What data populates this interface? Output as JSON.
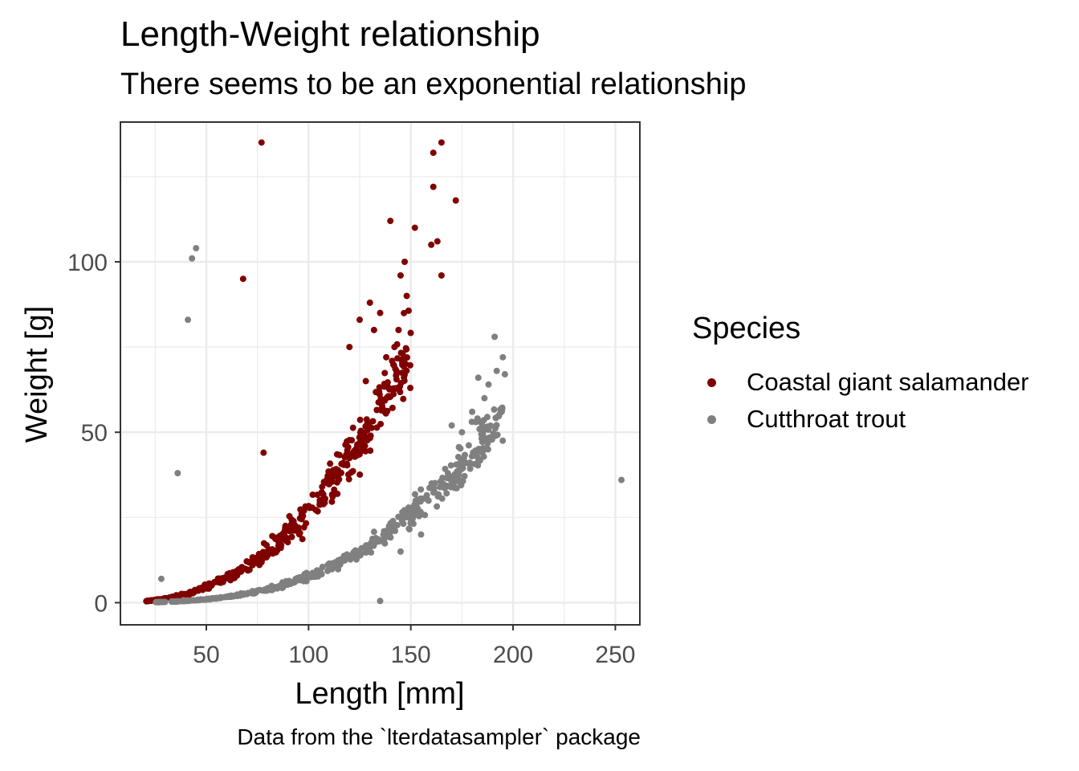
{
  "chart_data": {
    "type": "scatter",
    "title": "Length-Weight relationship",
    "subtitle": "There seems to be an exponential relationship",
    "caption": "Data from the `lterdatasampler` package",
    "xlabel": "Length [mm]",
    "ylabel": "Weight [g]",
    "xlim": [
      8,
      262
    ],
    "ylim": [
      -6.5,
      141
    ],
    "x_ticks": [
      50,
      100,
      150,
      200,
      250
    ],
    "y_ticks": [
      0,
      50,
      100
    ],
    "x_tick_labels": [
      "50",
      "100",
      "150",
      "200",
      "250"
    ],
    "y_tick_labels": [
      "0",
      "50",
      "100"
    ],
    "grid": true,
    "legend": {
      "title": "Species",
      "position": "right"
    },
    "series": [
      {
        "name": "Coastal giant salamander",
        "color": "#800000",
        "trend": {
          "a": 0.00022,
          "b": 2.54,
          "x_range": [
            20,
            150
          ],
          "count": 400,
          "spread": 0.15
        },
        "outliers": [
          [
            77,
            135
          ],
          [
            68,
            95
          ],
          [
            78,
            44
          ],
          [
            161,
            132
          ],
          [
            161,
            122
          ],
          [
            165,
            135
          ],
          [
            172,
            118
          ],
          [
            163,
            106
          ],
          [
            165,
            96
          ],
          [
            160,
            105
          ],
          [
            152,
            110
          ],
          [
            140,
            112
          ],
          [
            147,
            100
          ],
          [
            145,
            96
          ],
          [
            148,
            90
          ],
          [
            130,
            88
          ],
          [
            135,
            85
          ],
          [
            125,
            83
          ],
          [
            132,
            80
          ],
          [
            120,
            75
          ],
          [
            138,
            72
          ],
          [
            142,
            75
          ],
          [
            144,
            80
          ],
          [
            143,
            68
          ],
          [
            128,
            65
          ]
        ]
      },
      {
        "name": "Cutthroat trout",
        "color": "#808080",
        "trend": {
          "a": 9.8e-06,
          "b": 2.95,
          "x_range": [
            25,
            195
          ],
          "count": 480,
          "spread": 0.12
        },
        "outliers": [
          [
            45,
            104
          ],
          [
            43,
            101
          ],
          [
            41,
            83
          ],
          [
            36,
            38
          ],
          [
            253,
            36
          ],
          [
            135,
            0.5
          ],
          [
            191,
            78
          ],
          [
            195,
            72
          ],
          [
            196,
            67
          ],
          [
            183,
            66
          ],
          [
            188,
            64
          ],
          [
            192,
            68
          ],
          [
            186,
            60
          ],
          [
            180,
            56
          ],
          [
            175,
            50
          ],
          [
            170,
            52
          ],
          [
            28,
            7
          ],
          [
            145,
            15
          ],
          [
            155,
            20
          ]
        ]
      }
    ]
  }
}
